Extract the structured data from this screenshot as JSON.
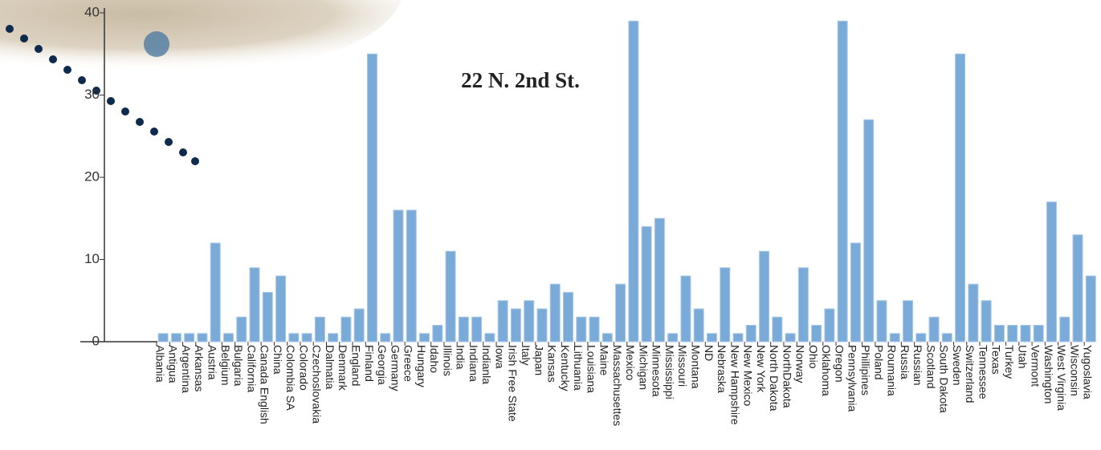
{
  "chart_data": {
    "type": "bar",
    "title": "22 N. 2nd St.",
    "categories": [
      "Albania",
      "Antigua",
      "Argentina",
      "Arkansas",
      "Austria",
      "Belgium",
      "Bulgaria",
      "California",
      "Canada English",
      "China",
      "Colombia SA",
      "Colorado",
      "Czechoslovakia",
      "Dalmatia",
      "Denmark",
      "England",
      "Finland",
      "Georgia",
      "Germany",
      "Greece",
      "Hungary",
      "Idaho",
      "Illinois",
      "India",
      "Indiana",
      "Indianla",
      "Iowa",
      "Irish Free State",
      "Italy",
      "Japan",
      "Kansas",
      "Kentucky",
      "Lithuania",
      "Louisiana",
      "Maine",
      "Massachusettes",
      "Mexico",
      "Michigan",
      "Minnesota",
      "Mississippi",
      "Missouri",
      "Montana",
      "ND",
      "Nebraska",
      "New Hampshire",
      "New Mexico",
      "New York",
      "North Dakota",
      "NorthDakota",
      "Norway",
      "Ohio",
      "Oklahoma",
      "Oregon",
      "Pennsylvania",
      "Phillipines",
      "Poland",
      "Roumania",
      "Russia",
      "Russian",
      "Scotland",
      "South Dakota",
      "Sweden",
      "Switzerland",
      "Tennessee",
      "Texas",
      "Turkey",
      "Utah",
      "Vermont",
      "Washington",
      "West Virginia",
      "Wisconsin",
      "Yugoslavia"
    ],
    "values": [
      1,
      1,
      1,
      1,
      12,
      1,
      3,
      9,
      6,
      8,
      1,
      1,
      3,
      1,
      3,
      4,
      35,
      1,
      16,
      16,
      1,
      2,
      11,
      3,
      3,
      1,
      5,
      4,
      5,
      4,
      7,
      6,
      3,
      3,
      1,
      7,
      39,
      14,
      15,
      1,
      8,
      4,
      1,
      9,
      1,
      2,
      11,
      3,
      1,
      9,
      2,
      4,
      39,
      12,
      27,
      5,
      1,
      5,
      1,
      3,
      1,
      35,
      7,
      5,
      2,
      2,
      2,
      2,
      17,
      3,
      13,
      8
    ],
    "color": "#7aaad8",
    "ylim": [
      0,
      40
    ],
    "yticks": [
      0,
      10,
      20,
      30,
      40
    ],
    "grid": false
  }
}
